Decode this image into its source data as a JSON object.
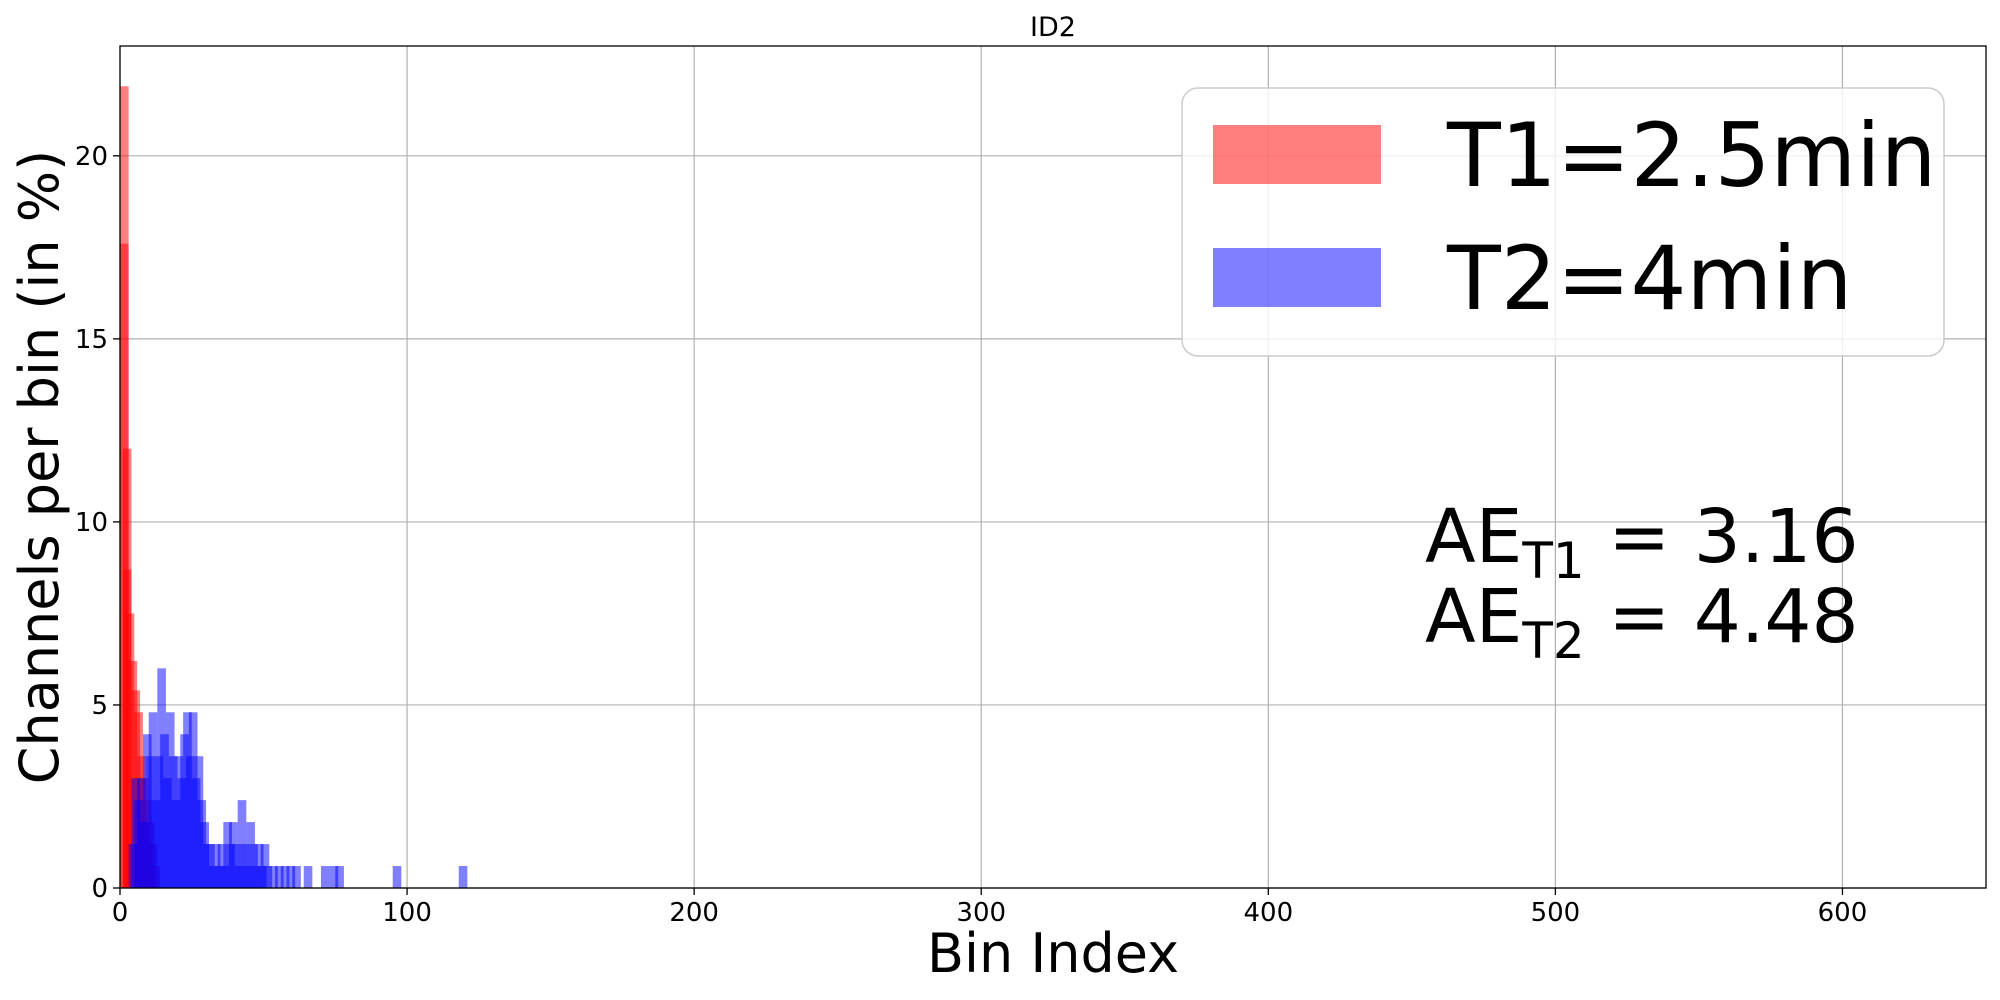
{
  "chart_data": {
    "type": "bar",
    "title": "ID2",
    "xlabel": "Bin Index",
    "ylabel": "Channels per bin (in %)",
    "xlim": [
      0,
      650
    ],
    "ylim": [
      0,
      23
    ],
    "xticks": [
      0,
      100,
      200,
      300,
      400,
      500,
      600
    ],
    "yticks": [
      0,
      5,
      10,
      15,
      20
    ],
    "grid": true,
    "legend_position": "top-right",
    "bin_width": 3,
    "series": [
      {
        "name": "T1=2.5min",
        "color": "#ff0000",
        "alpha": 0.5,
        "bins": [
          {
            "x": 0,
            "y": 21.9
          },
          {
            "x": 0,
            "y": 17.6
          },
          {
            "x": 1,
            "y": 12.0
          },
          {
            "x": 1,
            "y": 8.7
          },
          {
            "x": 2,
            "y": 7.5
          },
          {
            "x": 3,
            "y": 6.2
          },
          {
            "x": 4,
            "y": 5.4
          },
          {
            "x": 5,
            "y": 4.8
          },
          {
            "x": 6,
            "y": 3.6
          },
          {
            "x": 7,
            "y": 3.0
          },
          {
            "x": 8,
            "y": 2.4
          },
          {
            "x": 9,
            "y": 1.8
          },
          {
            "x": 10,
            "y": 1.2
          },
          {
            "x": 11,
            "y": 0.6
          }
        ]
      },
      {
        "name": "T2=4min",
        "color": "#0000ff",
        "alpha": 0.5,
        "bins": [
          {
            "x": 3,
            "y": 1.2
          },
          {
            "x": 4,
            "y": 3.0
          },
          {
            "x": 5,
            "y": 2.4
          },
          {
            "x": 6,
            "y": 3.0
          },
          {
            "x": 7,
            "y": 1.8
          },
          {
            "x": 8,
            "y": 4.2
          },
          {
            "x": 9,
            "y": 3.6
          },
          {
            "x": 10,
            "y": 4.8
          },
          {
            "x": 11,
            "y": 2.4
          },
          {
            "x": 12,
            "y": 3.6
          },
          {
            "x": 13,
            "y": 6.0
          },
          {
            "x": 14,
            "y": 4.2
          },
          {
            "x": 15,
            "y": 3.0
          },
          {
            "x": 16,
            "y": 4.8
          },
          {
            "x": 17,
            "y": 3.6
          },
          {
            "x": 18,
            "y": 2.4
          },
          {
            "x": 19,
            "y": 3.6
          },
          {
            "x": 20,
            "y": 3.0
          },
          {
            "x": 21,
            "y": 4.2
          },
          {
            "x": 22,
            "y": 4.8
          },
          {
            "x": 23,
            "y": 3.6
          },
          {
            "x": 24,
            "y": 4.8
          },
          {
            "x": 25,
            "y": 3.0
          },
          {
            "x": 26,
            "y": 3.6
          },
          {
            "x": 27,
            "y": 2.4
          },
          {
            "x": 28,
            "y": 1.8
          },
          {
            "x": 29,
            "y": 1.2
          },
          {
            "x": 30,
            "y": 1.2
          },
          {
            "x": 31,
            "y": 0.6
          },
          {
            "x": 32,
            "y": 1.2
          },
          {
            "x": 33,
            "y": 0.6
          },
          {
            "x": 34,
            "y": 1.2
          },
          {
            "x": 35,
            "y": 0.6
          },
          {
            "x": 36,
            "y": 1.8
          },
          {
            "x": 37,
            "y": 1.2
          },
          {
            "x": 38,
            "y": 1.8
          },
          {
            "x": 39,
            "y": 1.2
          },
          {
            "x": 40,
            "y": 0.6
          },
          {
            "x": 41,
            "y": 2.4
          },
          {
            "x": 42,
            "y": 1.2
          },
          {
            "x": 43,
            "y": 0.6
          },
          {
            "x": 44,
            "y": 1.8
          },
          {
            "x": 45,
            "y": 1.2
          },
          {
            "x": 46,
            "y": 0.6
          },
          {
            "x": 47,
            "y": 1.2
          },
          {
            "x": 48,
            "y": 0.6
          },
          {
            "x": 49,
            "y": 1.2
          },
          {
            "x": 50,
            "y": 0.6
          },
          {
            "x": 52,
            "y": 0.6
          },
          {
            "x": 54,
            "y": 0.6
          },
          {
            "x": 56,
            "y": 0.6
          },
          {
            "x": 58,
            "y": 0.6
          },
          {
            "x": 60,
            "y": 0.6
          },
          {
            "x": 64,
            "y": 0.6
          },
          {
            "x": 70,
            "y": 0.6
          },
          {
            "x": 73,
            "y": 0.6
          },
          {
            "x": 75,
            "y": 0.6
          },
          {
            "x": 95,
            "y": 0.6
          },
          {
            "x": 118,
            "y": 0.6
          }
        ]
      }
    ],
    "annotations": [
      {
        "base": "AE",
        "sub": "T1",
        "text": " = 3.16"
      },
      {
        "base": "AE",
        "sub": "T2",
        "text": " = 4.48"
      }
    ]
  }
}
